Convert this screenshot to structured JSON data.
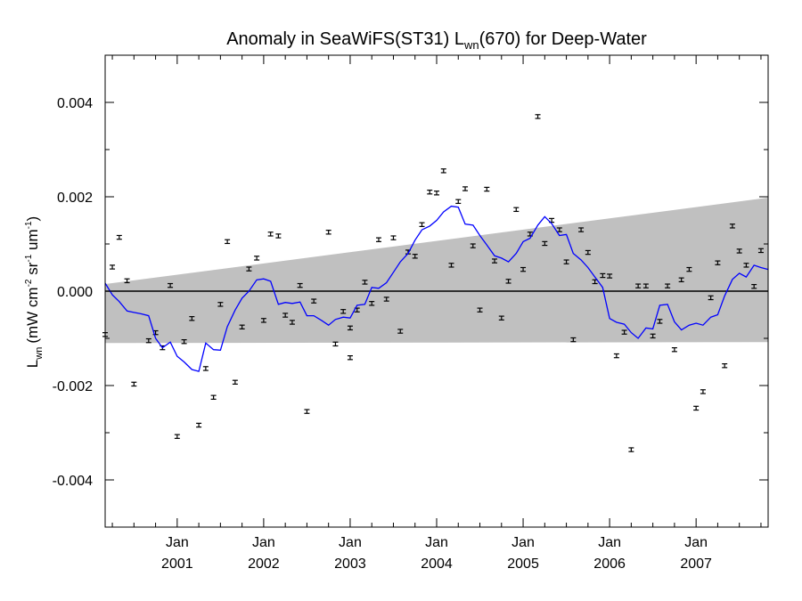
{
  "chart_data": {
    "type": "scatter",
    "title_main": "Anomaly in SeaWiFS(ST31) L",
    "title_sub": "wn",
    "title_tail": "(670) for Deep-Water",
    "ylabel_main": "L",
    "ylabel_sub": "wn",
    "ylabel_units": "(mW cm",
    "ylabel_exp1": "-2",
    "ylabel_sr": " sr",
    "ylabel_exp2": "-1",
    "ylabel_um": " um",
    "ylabel_exp3": "-1",
    "ylabel_close": ")",
    "ylim": [
      -0.005,
      0.005
    ],
    "xlim": [
      2000.167,
      2007.833
    ],
    "yticks": [
      {
        "value": 0.004,
        "label": "0.004"
      },
      {
        "value": 0.002,
        "label": "0.002"
      },
      {
        "value": 0.0,
        "label": "0.000"
      },
      {
        "value": -0.002,
        "label": "-0.002"
      },
      {
        "value": -0.004,
        "label": "-0.004"
      }
    ],
    "xticks": [
      {
        "value": 2001.0,
        "month": "Jan",
        "year": "2001"
      },
      {
        "value": 2002.0,
        "month": "Jan",
        "year": "2002"
      },
      {
        "value": 2003.0,
        "month": "Jan",
        "year": "2003"
      },
      {
        "value": 2004.0,
        "month": "Jan",
        "year": "2004"
      },
      {
        "value": 2005.0,
        "month": "Jan",
        "year": "2005"
      },
      {
        "value": 2006.0,
        "month": "Jan",
        "year": "2006"
      },
      {
        "value": 2007.0,
        "month": "Jan",
        "year": "2007"
      }
    ],
    "zero_line": 0.0,
    "band": {
      "color": "#c0c0c0",
      "upper": [
        [
          2000.167,
          0.00015
        ],
        [
          2007.833,
          0.00198
        ]
      ],
      "lower": [
        [
          2000.167,
          -0.0011
        ],
        [
          2007.833,
          -0.00108
        ]
      ]
    },
    "series": [
      {
        "style": "points_with_errorbars",
        "color": "#000000",
        "error": 4e-05,
        "points": [
          [
            2000.167,
            -0.00092
          ],
          [
            2000.25,
            0.00051
          ],
          [
            2000.33,
            0.00114
          ],
          [
            2000.42,
            0.00022
          ],
          [
            2000.5,
            -0.00197
          ],
          [
            2000.67,
            -0.00105
          ],
          [
            2000.75,
            -0.00088
          ],
          [
            2000.83,
            -0.0012
          ],
          [
            2000.92,
            0.00012
          ],
          [
            2001.0,
            -0.00308
          ],
          [
            2001.08,
            -0.00107
          ],
          [
            2001.17,
            -0.00058
          ],
          [
            2001.25,
            -0.00284
          ],
          [
            2001.33,
            -0.00164
          ],
          [
            2001.42,
            -0.00225
          ],
          [
            2001.5,
            -0.00028
          ],
          [
            2001.58,
            0.00105
          ],
          [
            2001.67,
            -0.00193
          ],
          [
            2001.75,
            -0.00076
          ],
          [
            2001.83,
            0.00047
          ],
          [
            2001.92,
            0.0007
          ],
          [
            2002.0,
            -0.00062
          ],
          [
            2002.08,
            0.00121
          ],
          [
            2002.17,
            0.00117
          ],
          [
            2002.25,
            -0.00051
          ],
          [
            2002.33,
            -0.00066
          ],
          [
            2002.42,
            0.00012
          ],
          [
            2002.5,
            -0.00255
          ],
          [
            2002.58,
            -0.00021
          ],
          [
            2002.75,
            0.00125
          ],
          [
            2002.83,
            -0.00112
          ],
          [
            2002.92,
            -0.00043
          ],
          [
            2003.0,
            -0.00141
          ],
          [
            2003.0,
            -0.00078
          ],
          [
            2003.08,
            -0.0004
          ],
          [
            2003.17,
            0.00019
          ],
          [
            2003.25,
            -0.00026
          ],
          [
            2003.33,
            0.00109
          ],
          [
            2003.42,
            -0.00017
          ],
          [
            2003.5,
            0.00113
          ],
          [
            2003.58,
            -0.00085
          ],
          [
            2003.67,
            0.00083
          ],
          [
            2003.75,
            0.00074
          ],
          [
            2003.83,
            0.00141
          ],
          [
            2003.92,
            0.0021
          ],
          [
            2004.0,
            0.00208
          ],
          [
            2004.08,
            0.00255
          ],
          [
            2004.17,
            0.00055
          ],
          [
            2004.25,
            0.0019
          ],
          [
            2004.33,
            0.00217
          ],
          [
            2004.42,
            0.00096
          ],
          [
            2004.5,
            -0.0004
          ],
          [
            2004.58,
            0.00216
          ],
          [
            2004.67,
            0.00064
          ],
          [
            2004.75,
            -0.00057
          ],
          [
            2004.83,
            0.00021
          ],
          [
            2004.92,
            0.00173
          ],
          [
            2005.0,
            0.00046
          ],
          [
            2005.08,
            0.00121
          ],
          [
            2005.17,
            0.0037
          ],
          [
            2005.25,
            0.00101
          ],
          [
            2005.33,
            0.0015
          ],
          [
            2005.42,
            0.0013
          ],
          [
            2005.5,
            0.00062
          ],
          [
            2005.58,
            -0.00103
          ],
          [
            2005.67,
            0.0013
          ],
          [
            2005.75,
            0.00082
          ],
          [
            2005.83,
            0.0002
          ],
          [
            2005.92,
            0.00033
          ],
          [
            2006.0,
            0.00032
          ],
          [
            2006.08,
            -0.00137
          ],
          [
            2006.17,
            -0.00087
          ],
          [
            2006.25,
            -0.00336
          ],
          [
            2006.33,
            0.00011
          ],
          [
            2006.42,
            0.00011
          ],
          [
            2006.5,
            -0.00095
          ],
          [
            2006.58,
            -0.00064
          ],
          [
            2006.67,
            0.00011
          ],
          [
            2006.75,
            -0.00124
          ],
          [
            2006.83,
            0.00024
          ],
          [
            2006.92,
            0.00046
          ],
          [
            2007.0,
            -0.00248
          ],
          [
            2007.08,
            -0.00213
          ],
          [
            2007.17,
            -0.00014
          ],
          [
            2007.25,
            0.0006
          ],
          [
            2007.33,
            -0.00158
          ],
          [
            2007.42,
            0.00138
          ],
          [
            2007.5,
            0.00085
          ],
          [
            2007.58,
            0.00055
          ],
          [
            2007.67,
            0.0001
          ],
          [
            2007.75,
            0.00086
          ]
        ]
      },
      {
        "style": "line",
        "color": "#0000ff",
        "points": [
          [
            2000.167,
            0.00017
          ],
          [
            2000.25,
            -8e-05
          ],
          [
            2000.33,
            -0.00022
          ],
          [
            2000.42,
            -0.00042
          ],
          [
            2000.5,
            -0.00045
          ],
          [
            2000.58,
            -0.00048
          ],
          [
            2000.67,
            -0.00052
          ],
          [
            2000.75,
            -0.001
          ],
          [
            2000.83,
            -0.0012
          ],
          [
            2000.92,
            -0.00108
          ],
          [
            2001.0,
            -0.00138
          ],
          [
            2001.08,
            -0.0015
          ],
          [
            2001.17,
            -0.00166
          ],
          [
            2001.25,
            -0.0017
          ],
          [
            2001.33,
            -0.0011
          ],
          [
            2001.42,
            -0.00124
          ],
          [
            2001.5,
            -0.00125
          ],
          [
            2001.58,
            -0.00075
          ],
          [
            2001.67,
            -0.0004
          ],
          [
            2001.75,
            -0.00015
          ],
          [
            2001.83,
            0.0
          ],
          [
            2001.92,
            0.00024
          ],
          [
            2002.0,
            0.00026
          ],
          [
            2002.08,
            0.00021
          ],
          [
            2002.17,
            -0.00028
          ],
          [
            2002.25,
            -0.00024
          ],
          [
            2002.33,
            -0.00026
          ],
          [
            2002.42,
            -0.00023
          ],
          [
            2002.5,
            -0.00052
          ],
          [
            2002.58,
            -0.00052
          ],
          [
            2002.67,
            -0.00062
          ],
          [
            2002.75,
            -0.00072
          ],
          [
            2002.83,
            -0.0006
          ],
          [
            2002.92,
            -0.00055
          ],
          [
            2003.0,
            -0.00057
          ],
          [
            2003.08,
            -0.0003
          ],
          [
            2003.17,
            -0.00028
          ],
          [
            2003.25,
            8e-05
          ],
          [
            2003.33,
            6e-05
          ],
          [
            2003.42,
            0.00018
          ],
          [
            2003.5,
            0.0004
          ],
          [
            2003.58,
            0.00062
          ],
          [
            2003.67,
            0.0008
          ],
          [
            2003.75,
            0.00108
          ],
          [
            2003.83,
            0.0013
          ],
          [
            2003.92,
            0.00138
          ],
          [
            2004.0,
            0.0015
          ],
          [
            2004.08,
            0.00168
          ],
          [
            2004.17,
            0.0018
          ],
          [
            2004.25,
            0.00178
          ],
          [
            2004.33,
            0.00142
          ],
          [
            2004.42,
            0.0014
          ],
          [
            2004.5,
            0.00118
          ],
          [
            2004.58,
            0.00098
          ],
          [
            2004.67,
            0.00075
          ],
          [
            2004.75,
            0.0007
          ],
          [
            2004.83,
            0.00062
          ],
          [
            2004.92,
            0.0008
          ],
          [
            2005.0,
            0.00105
          ],
          [
            2005.08,
            0.00112
          ],
          [
            2005.17,
            0.0014
          ],
          [
            2005.25,
            0.00158
          ],
          [
            2005.33,
            0.00143
          ],
          [
            2005.42,
            0.00118
          ],
          [
            2005.5,
            0.0012
          ],
          [
            2005.58,
            0.0008
          ],
          [
            2005.67,
            0.00066
          ],
          [
            2005.75,
            0.0005
          ],
          [
            2005.83,
            0.0003
          ],
          [
            2005.92,
            8e-05
          ],
          [
            2006.0,
            -0.00058
          ],
          [
            2006.08,
            -0.00066
          ],
          [
            2006.17,
            -0.0007
          ],
          [
            2006.25,
            -0.00088
          ],
          [
            2006.33,
            -0.001
          ],
          [
            2006.42,
            -0.00078
          ],
          [
            2006.5,
            -0.0008
          ],
          [
            2006.58,
            -0.0003
          ],
          [
            2006.67,
            -0.00028
          ],
          [
            2006.75,
            -0.00065
          ],
          [
            2006.83,
            -0.00082
          ],
          [
            2006.92,
            -0.00072
          ],
          [
            2007.0,
            -0.00068
          ],
          [
            2007.08,
            -0.00072
          ],
          [
            2007.17,
            -0.00055
          ],
          [
            2007.25,
            -0.0005
          ],
          [
            2007.33,
            -0.0001
          ],
          [
            2007.42,
            0.00025
          ],
          [
            2007.5,
            0.00038
          ],
          [
            2007.58,
            0.0003
          ],
          [
            2007.67,
            0.00055
          ],
          [
            2007.75,
            0.0005
          ],
          [
            2007.833,
            0.00046
          ]
        ]
      }
    ]
  }
}
